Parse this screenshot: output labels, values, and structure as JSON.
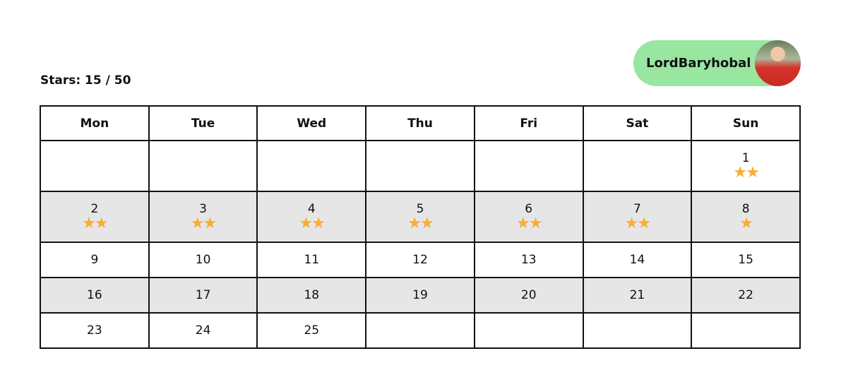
{
  "user": {
    "name": "LordBaryhobal",
    "avatar": "user-avatar-photo"
  },
  "stars_label": "Stars: 15 / 50",
  "colors": {
    "star": "#f9ad32",
    "user_badge": "#98e6a0",
    "alt_row": "#e6e6e6"
  },
  "days": [
    "Mon",
    "Tue",
    "Wed",
    "Thu",
    "Fri",
    "Sat",
    "Sun"
  ],
  "weeks": [
    [
      null,
      null,
      null,
      null,
      null,
      null,
      {
        "day": "1",
        "stars": 2
      }
    ],
    [
      {
        "day": "2",
        "stars": 2
      },
      {
        "day": "3",
        "stars": 2
      },
      {
        "day": "4",
        "stars": 2
      },
      {
        "day": "5",
        "stars": 2
      },
      {
        "day": "6",
        "stars": 2
      },
      {
        "day": "7",
        "stars": 2
      },
      {
        "day": "8",
        "stars": 1
      }
    ],
    [
      {
        "day": "9",
        "stars": 0
      },
      {
        "day": "10",
        "stars": 0
      },
      {
        "day": "11",
        "stars": 0
      },
      {
        "day": "12",
        "stars": 0
      },
      {
        "day": "13",
        "stars": 0
      },
      {
        "day": "14",
        "stars": 0
      },
      {
        "day": "15",
        "stars": 0
      }
    ],
    [
      {
        "day": "16",
        "stars": 0
      },
      {
        "day": "17",
        "stars": 0
      },
      {
        "day": "18",
        "stars": 0
      },
      {
        "day": "19",
        "stars": 0
      },
      {
        "day": "20",
        "stars": 0
      },
      {
        "day": "21",
        "stars": 0
      },
      {
        "day": "22",
        "stars": 0
      }
    ],
    [
      {
        "day": "23",
        "stars": 0
      },
      {
        "day": "24",
        "stars": 0
      },
      {
        "day": "25",
        "stars": 0
      },
      null,
      null,
      null,
      null
    ]
  ]
}
